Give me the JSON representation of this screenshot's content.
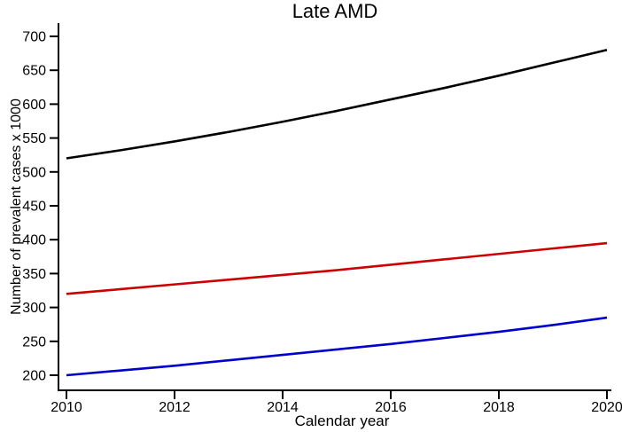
{
  "chart_data": {
    "type": "line",
    "title": "Late AMD",
    "xlabel": "Calendar year",
    "ylabel": "Number of prevalent cases x 1000",
    "x": [
      2010,
      2011,
      2012,
      2013,
      2014,
      2015,
      2016,
      2017,
      2018,
      2019,
      2020
    ],
    "series": [
      {
        "name": "black-line",
        "color": "#000000",
        "values": [
          520,
          532,
          545,
          559,
          574,
          590,
          607,
          624,
          642,
          661,
          680
        ]
      },
      {
        "name": "red-line",
        "color": "#cc0000",
        "values": [
          320,
          327,
          334,
          341,
          348,
          355,
          363,
          371,
          379,
          387,
          395
        ]
      },
      {
        "name": "blue-line",
        "color": "#0000cc",
        "values": [
          200,
          207,
          214,
          222,
          230,
          238,
          246,
          255,
          264,
          274,
          285
        ]
      }
    ],
    "xticks": [
      2010,
      2012,
      2014,
      2016,
      2018,
      2020
    ],
    "yticks": [
      200,
      250,
      300,
      350,
      400,
      450,
      500,
      550,
      600,
      650,
      700
    ],
    "xlim": [
      2010,
      2020
    ],
    "ylim": [
      200,
      700
    ],
    "grid": false,
    "legend": "none",
    "axis_color": "#000000",
    "background": "#ffffff"
  }
}
